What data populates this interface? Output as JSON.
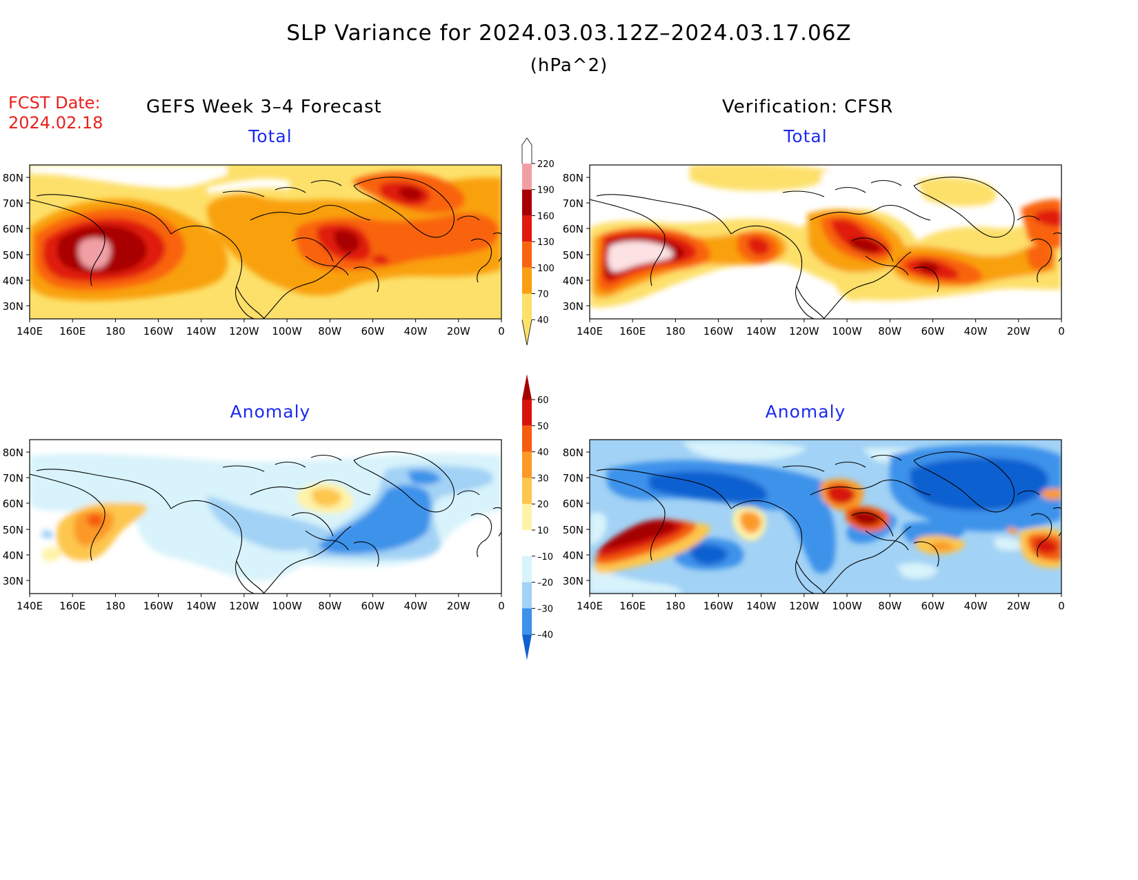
{
  "header": {
    "title": "SLP Variance for 2024.03.03.12Z–2024.03.17.06Z",
    "units": "(hPa^2)",
    "fcst_label_line1": "FCST Date:",
    "fcst_label_line2": "2024.02.18",
    "left_title": "GEFS Week 3–4 Forecast",
    "right_title": "Verification: CFSR"
  },
  "panels": {
    "total_label": "Total",
    "anomaly_label": "Anomaly"
  },
  "map": {
    "lon_ticks": [
      "140E",
      "160E",
      "180",
      "160W",
      "140W",
      "120W",
      "100W",
      "80W",
      "60W",
      "40W",
      "20W",
      "0"
    ],
    "lat_ticks": [
      "80N",
      "70N",
      "60N",
      "50N",
      "40N",
      "30N"
    ]
  },
  "colorbars": {
    "total": {
      "levels": [
        "220",
        "190",
        "160",
        "130",
        "100",
        "70",
        "40"
      ],
      "colors": [
        "#fde2e4",
        "#f0a0a5",
        "#a80000",
        "#e01b0c",
        "#f96410",
        "#f9a010",
        "#fde06a"
      ]
    },
    "anomaly": {
      "levels": [
        "60",
        "50",
        "40",
        "30",
        "20",
        "10",
        "–10",
        "–20",
        "–30",
        "–40"
      ],
      "colors": [
        "#a50000",
        "#d7140c",
        "#f55c10",
        "#fb9a26",
        "#fdc64e",
        "#fef3a8",
        "#ffffff",
        "#d8f3fb",
        "#a2d2f5",
        "#3d92ea",
        "#1060d0"
      ]
    }
  }
}
